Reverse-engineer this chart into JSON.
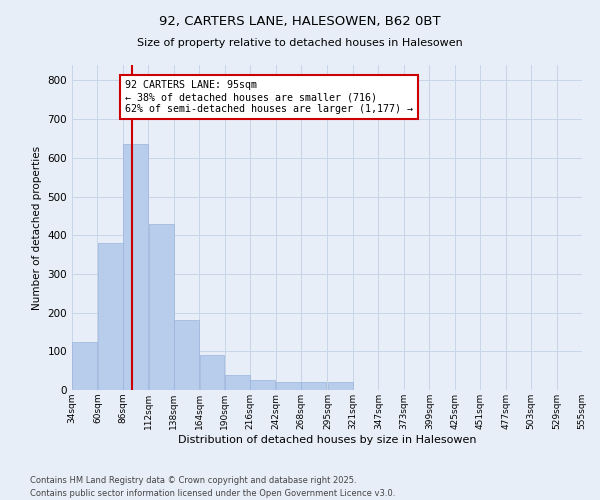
{
  "title_line1": "92, CARTERS LANE, HALESOWEN, B62 0BT",
  "title_line2": "Size of property relative to detached houses in Halesowen",
  "xlabel": "Distribution of detached houses by size in Halesowen",
  "ylabel": "Number of detached properties",
  "footer_line1": "Contains HM Land Registry data © Crown copyright and database right 2025.",
  "footer_line2": "Contains public sector information licensed under the Open Government Licence v3.0.",
  "bins": [
    34,
    60,
    86,
    112,
    138,
    164,
    190,
    216,
    242,
    268,
    295,
    321,
    347,
    373,
    399,
    425,
    451,
    477,
    503,
    529,
    555
  ],
  "bar_values": [
    125,
    380,
    635,
    430,
    180,
    90,
    40,
    25,
    20,
    20,
    20,
    0,
    0,
    0,
    0,
    0,
    0,
    0,
    0,
    0
  ],
  "bar_color": "#b8ccec",
  "bar_edge_color": "#9ab4dc",
  "grid_color": "#c8d4e8",
  "background_color": "#e8eef8",
  "vline_x": 95,
  "vline_color": "#cc0000",
  "annotation_text": "92 CARTERS LANE: 95sqm\n← 38% of detached houses are smaller (716)\n62% of semi-detached houses are larger (1,177) →",
  "annotation_box_color": "#ffffff",
  "annotation_box_edge": "#cc0000",
  "ylim": [
    0,
    840
  ],
  "yticks": [
    0,
    100,
    200,
    300,
    400,
    500,
    600,
    700,
    800
  ],
  "figsize": [
    6.0,
    5.0
  ],
  "dpi": 100
}
